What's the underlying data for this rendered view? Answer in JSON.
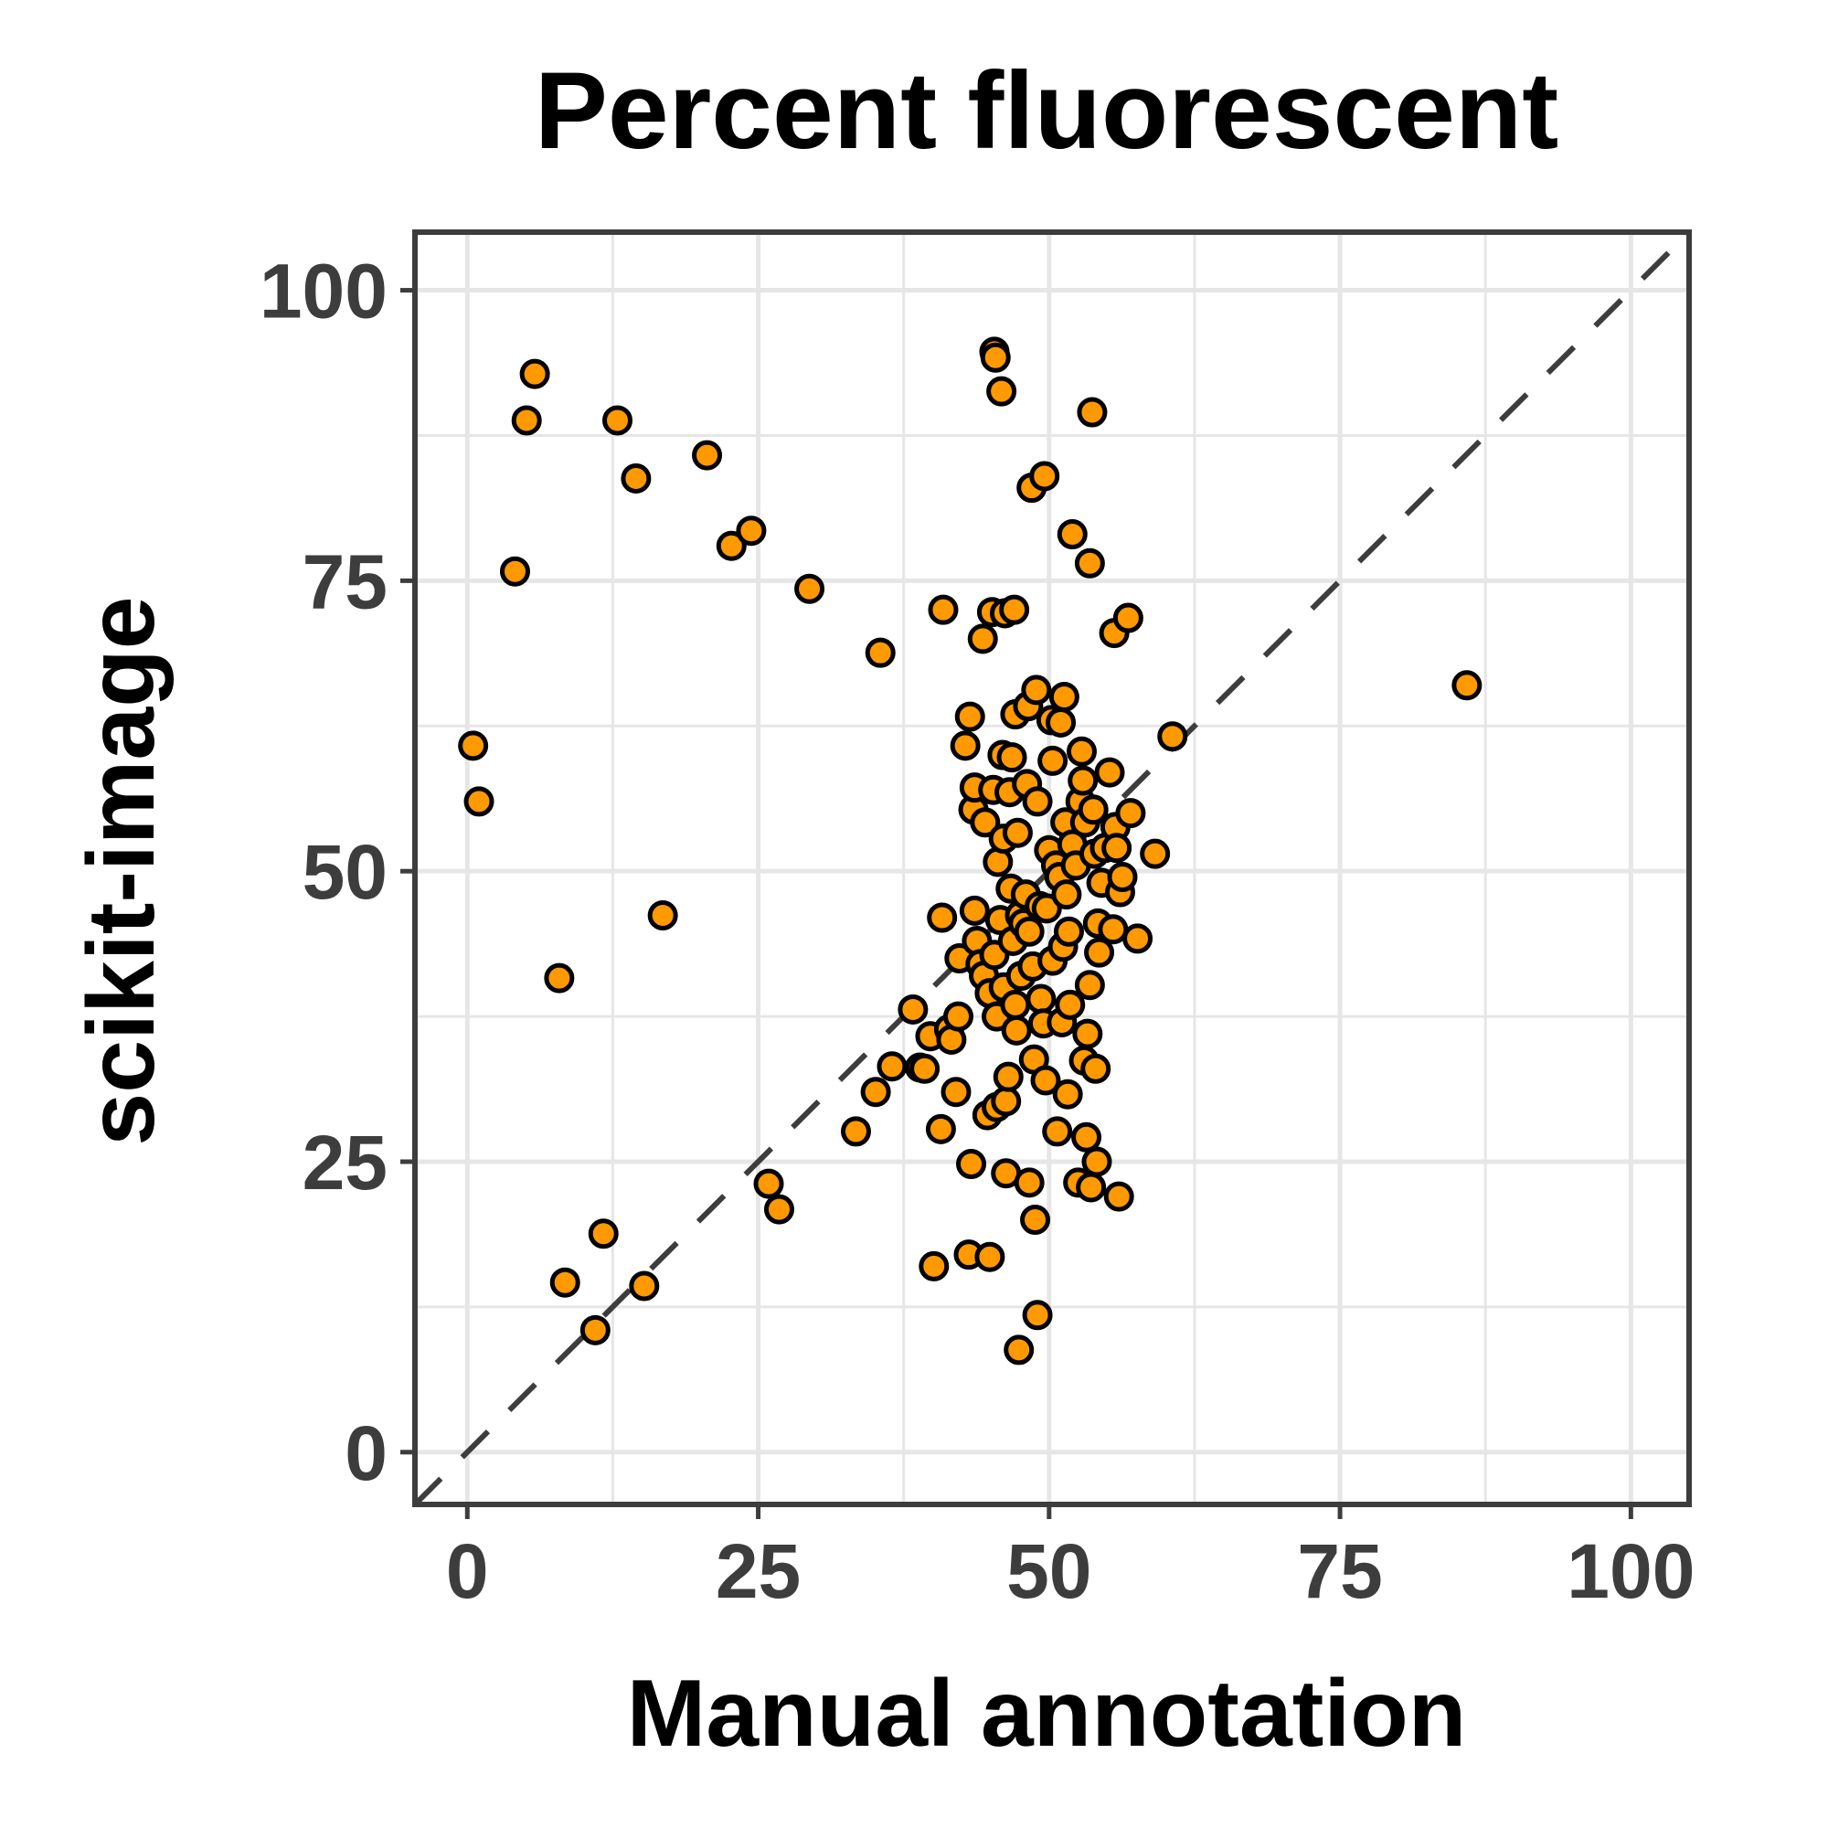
{
  "chart_data": {
    "type": "scatter",
    "title": "Percent fluorescent",
    "xlabel": "Manual annotation",
    "ylabel": "scikit-image",
    "xlim": [
      -4.5,
      105
    ],
    "ylim": [
      -4.5,
      105
    ],
    "xticks": [
      0,
      25,
      50,
      75,
      100
    ],
    "yticks": [
      0,
      25,
      50,
      75,
      100
    ],
    "xtick_labels": [
      "0",
      "25",
      "50",
      "75",
      "100"
    ],
    "ytick_labels": [
      "0",
      "25",
      "50",
      "75",
      "100"
    ],
    "grid": true,
    "reference_line": "y = x (dashed)",
    "point_fill": "#ff9900",
    "point_stroke": "#000000",
    "series": [
      {
        "points": [
          [
            0.5,
            60.8
          ],
          [
            1.0,
            56.0
          ],
          [
            4.1,
            75.8
          ],
          [
            5.1,
            88.8
          ],
          [
            5.8,
            92.8
          ],
          [
            7.9,
            40.8
          ],
          [
            8.4,
            14.6
          ],
          [
            11.0,
            10.5
          ],
          [
            11.7,
            18.8
          ],
          [
            12.9,
            88.8
          ],
          [
            14.5,
            83.8
          ],
          [
            15.2,
            14.3
          ],
          [
            16.8,
            46.2
          ],
          [
            20.6,
            85.8
          ],
          [
            22.7,
            78.0
          ],
          [
            24.4,
            79.3
          ],
          [
            25.9,
            23.1
          ],
          [
            26.8,
            20.9
          ],
          [
            29.4,
            74.3
          ],
          [
            33.4,
            27.6
          ],
          [
            35.1,
            31.0
          ],
          [
            35.5,
            68.8
          ],
          [
            36.5,
            33.2
          ],
          [
            38.3,
            38.1
          ],
          [
            38.9,
            33.1
          ],
          [
            39.3,
            33.0
          ],
          [
            39.8,
            35.8
          ],
          [
            40.1,
            16.0
          ],
          [
            40.7,
            27.8
          ],
          [
            40.9,
            72.5
          ],
          [
            40.8,
            46.0
          ],
          [
            41.4,
            36.4
          ],
          [
            41.6,
            35.5
          ],
          [
            42.0,
            31.0
          ],
          [
            42.2,
            37.5
          ],
          [
            42.3,
            42.5
          ],
          [
            42.8,
            60.8
          ],
          [
            43.1,
            17.0
          ],
          [
            43.2,
            63.3
          ],
          [
            43.3,
            24.8
          ],
          [
            43.5,
            55.3
          ],
          [
            43.6,
            46.6
          ],
          [
            43.6,
            57.2
          ],
          [
            43.8,
            44.0
          ],
          [
            44.1,
            42.0
          ],
          [
            44.3,
            70.0
          ],
          [
            44.4,
            41.0
          ],
          [
            44.5,
            54.2
          ],
          [
            44.7,
            29.0
          ],
          [
            44.9,
            16.8
          ],
          [
            45.1,
            72.3
          ],
          [
            44.9,
            39.5
          ],
          [
            45.2,
            57.0
          ],
          [
            45.3,
            42.8
          ],
          [
            45.3,
            94.7
          ],
          [
            45.4,
            94.2
          ],
          [
            45.5,
            37.5
          ],
          [
            45.5,
            29.7
          ],
          [
            45.6,
            50.8
          ],
          [
            45.8,
            45.8
          ],
          [
            45.9,
            91.3
          ],
          [
            46.0,
            60.0
          ],
          [
            46.1,
            52.8
          ],
          [
            46.1,
            40.0
          ],
          [
            46.2,
            72.2
          ],
          [
            46.3,
            30.2
          ],
          [
            46.3,
            24.0
          ],
          [
            46.5,
            32.3
          ],
          [
            46.6,
            56.8
          ],
          [
            46.7,
            48.5
          ],
          [
            46.8,
            59.8
          ],
          [
            46.9,
            44.0
          ],
          [
            47.0,
            72.5
          ],
          [
            47.1,
            63.5
          ],
          [
            47.1,
            38.5
          ],
          [
            47.2,
            36.3
          ],
          [
            47.3,
            53.3
          ],
          [
            47.4,
            8.8
          ],
          [
            47.5,
            46.2
          ],
          [
            47.6,
            41.0
          ],
          [
            47.8,
            45.5
          ],
          [
            48.0,
            48.0
          ],
          [
            48.1,
            57.5
          ],
          [
            48.2,
            64.2
          ],
          [
            48.3,
            23.2
          ],
          [
            48.3,
            44.8
          ],
          [
            48.5,
            83.0
          ],
          [
            48.6,
            41.8
          ],
          [
            48.7,
            33.8
          ],
          [
            48.8,
            20.0
          ],
          [
            48.9,
            65.6
          ],
          [
            49.0,
            11.8
          ],
          [
            49.0,
            56.0
          ],
          [
            49.2,
            47.0
          ],
          [
            49.3,
            39.0
          ],
          [
            49.5,
            36.9
          ],
          [
            49.6,
            84.0
          ],
          [
            49.7,
            32.0
          ],
          [
            49.8,
            46.8
          ],
          [
            50.0,
            51.8
          ],
          [
            50.2,
            63.0
          ],
          [
            50.3,
            59.5
          ],
          [
            50.3,
            42.3
          ],
          [
            50.6,
            50.5
          ],
          [
            50.7,
            27.6
          ],
          [
            50.9,
            49.5
          ],
          [
            51.0,
            62.8
          ],
          [
            51.1,
            37.0
          ],
          [
            51.2,
            43.5
          ],
          [
            51.3,
            65.0
          ],
          [
            51.4,
            54.2
          ],
          [
            51.5,
            48.0
          ],
          [
            51.6,
            30.8
          ],
          [
            51.7,
            44.8
          ],
          [
            51.8,
            38.5
          ],
          [
            52.0,
            79.0
          ],
          [
            52.0,
            52.3
          ],
          [
            52.3,
            50.5
          ],
          [
            52.5,
            23.2
          ],
          [
            52.7,
            56.0
          ],
          [
            52.8,
            60.3
          ],
          [
            52.9,
            57.8
          ],
          [
            53.0,
            33.7
          ],
          [
            53.1,
            54.2
          ],
          [
            53.2,
            27.1
          ],
          [
            53.3,
            36.0
          ],
          [
            53.5,
            76.5
          ],
          [
            53.5,
            40.2
          ],
          [
            53.6,
            22.8
          ],
          [
            53.7,
            89.5
          ],
          [
            53.8,
            55.3
          ],
          [
            53.9,
            51.5
          ],
          [
            54.0,
            33.0
          ],
          [
            54.1,
            25.0
          ],
          [
            54.2,
            45.5
          ],
          [
            54.3,
            43.0
          ],
          [
            54.5,
            49.0
          ],
          [
            54.8,
            52.0
          ],
          [
            55.2,
            58.5
          ],
          [
            55.5,
            45.0
          ],
          [
            55.6,
            70.5
          ],
          [
            55.7,
            53.8
          ],
          [
            55.8,
            52.0
          ],
          [
            56.0,
            22.0
          ],
          [
            56.1,
            48.2
          ],
          [
            56.3,
            49.5
          ],
          [
            56.8,
            71.8
          ],
          [
            57.0,
            55.0
          ],
          [
            57.6,
            44.2
          ],
          [
            59.1,
            51.5
          ],
          [
            60.6,
            61.6
          ],
          [
            85.9,
            66.0
          ]
        ]
      }
    ]
  }
}
